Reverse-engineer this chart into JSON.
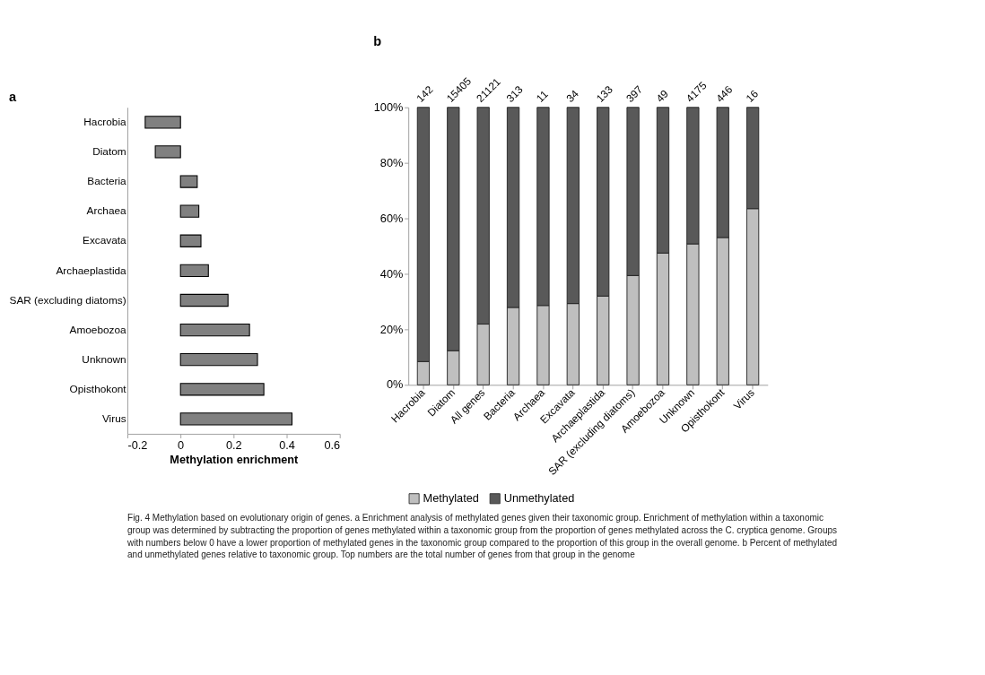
{
  "chart_data": [
    {
      "type": "bar",
      "orientation": "horizontal",
      "title": "a",
      "xlabel": "Methylation enrichment",
      "color": "#808080",
      "categories": [
        "Hacrobia",
        "Diatom",
        "Bacteria",
        "Archaea",
        "Excavata",
        "Archaeplastida",
        "SAR (excluding diatoms)",
        "Amoebozoa",
        "Unknown",
        "Opisthokont",
        "Virus"
      ],
      "values": [
        -0.133,
        -0.095,
        0.063,
        0.069,
        0.077,
        0.105,
        0.179,
        0.26,
        0.29,
        0.314,
        0.42
      ],
      "xlim": [
        -0.2,
        0.6
      ],
      "xticks": [
        -0.2,
        0,
        0.2,
        0.4,
        0.6
      ]
    },
    {
      "type": "bar",
      "stacked": true,
      "title": "b",
      "legend": "bottom",
      "categories": [
        "Hacrobia",
        "Diatom",
        "All genes",
        "Bacteria",
        "Archaea",
        "Excavata",
        "Archaeplastida",
        "SAR (excluding diatoms)",
        "Amoebozoa",
        "Unknown",
        "Opisthokont",
        "Virus"
      ],
      "series": [
        {
          "name": "Methylated",
          "color": "#bfbfbf",
          "values": [
            8.4,
            12.3,
            21.9,
            27.9,
            28.6,
            29.3,
            32.0,
            39.4,
            47.5,
            50.8,
            53.1,
            63.5
          ]
        },
        {
          "name": "Unmethylated",
          "color": "#595959",
          "values": [
            91.6,
            87.7,
            78.1,
            72.1,
            71.4,
            70.7,
            68.0,
            60.6,
            52.5,
            49.2,
            46.9,
            36.5
          ]
        }
      ],
      "ylim": [
        0,
        100
      ],
      "yticks": [
        {
          "value": 0,
          "label": "0%"
        },
        {
          "value": 20,
          "label": "20%"
        },
        {
          "value": 40,
          "label": "40%"
        },
        {
          "value": 60,
          "label": "60%"
        },
        {
          "value": 80,
          "label": "80%"
        },
        {
          "value": 100,
          "label": "100%"
        }
      ],
      "annotations": [
        {
          "text": "142",
          "x": "Hacrobia",
          "y": 100
        },
        {
          "text": "15405",
          "x": "Diatom",
          "y": 100
        },
        {
          "text": "21121",
          "x": "All genes",
          "y": 100
        },
        {
          "text": "313",
          "x": "Bacteria",
          "y": 100
        },
        {
          "text": "11",
          "x": "Archaea",
          "y": 100
        },
        {
          "text": "34",
          "x": "Excavata",
          "y": 100
        },
        {
          "text": "133",
          "x": "Archaeplastida",
          "y": 100
        },
        {
          "text": "397",
          "x": "SAR (excluding diatoms)",
          "y": 100
        },
        {
          "text": "49",
          "x": "Amoebozoa",
          "y": 100
        },
        {
          "text": "4175",
          "x": "Unknown",
          "y": 100
        },
        {
          "text": "446",
          "x": "Opisthokont",
          "y": 100
        },
        {
          "text": "16",
          "x": "Virus",
          "y": 100
        },
        "Fig. 4  Methylation based on evolutionary origin of genes. a Enrichment analysis of methylated genes given their taxonomic group. Enrichment of methylation within a taxonomic group was determined by subtracting the proportion of genes methylated within a taxonomic group from the proportion of genes methylated across the C. cryptica genome. Groups with numbers below 0 have a lower proportion of methylated genes in the taxonomic group compared to the proportion of this group in the overall genome. b Percent of methylated and unmethylated genes relative to taxonomic group. Top numbers are the total number of genes from that group in the genome"
      ]
    }
  ]
}
